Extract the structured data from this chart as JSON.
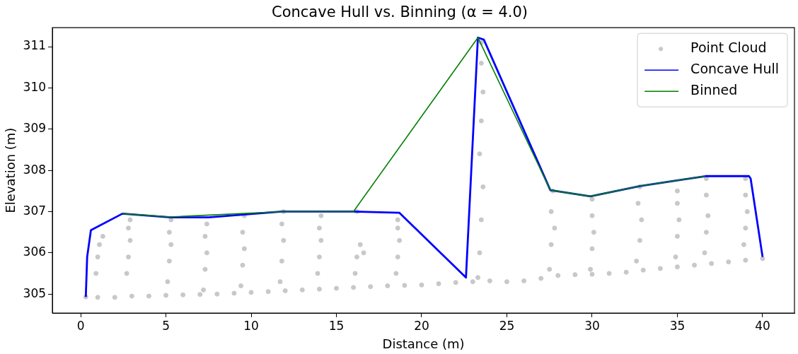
{
  "chart_data": {
    "type": "scatter",
    "title": "Concave Hull vs. Binning (α = 4.0)",
    "xlabel": "Distance (m)",
    "ylabel": "Elevation (m)",
    "xlim": [
      -1.66,
      41.87
    ],
    "ylim": [
      304.54,
      311.46
    ],
    "xticks": [
      0,
      5,
      10,
      15,
      20,
      25,
      30,
      35,
      40
    ],
    "yticks": [
      305,
      306,
      307,
      308,
      309,
      310,
      311
    ],
    "grid": false,
    "legend": "top right",
    "series": [
      {
        "name": "Point Cloud",
        "marker": "circle",
        "color": "#c8c8c8",
        "x": [
          0.3,
          1,
          2,
          3,
          4,
          5,
          6,
          7,
          8,
          9,
          10,
          11,
          12,
          13,
          14,
          15,
          16,
          17,
          18,
          19,
          20,
          21,
          22,
          23,
          24,
          25,
          26,
          27,
          28,
          29,
          30,
          31,
          32,
          33,
          34,
          35,
          36,
          37,
          38,
          39,
          40,
          0.9,
          1.0,
          1.1,
          1.3,
          2.7,
          2.8,
          2.9,
          2.8,
          2.9,
          5.1,
          5.2,
          5.3,
          5.2,
          5.3,
          7.2,
          7.3,
          7.4,
          7.3,
          7.4,
          9.4,
          9.5,
          9.6,
          9.5,
          9.6,
          11.7,
          11.8,
          11.9,
          11.8,
          11.9,
          13.9,
          14.0,
          14.1,
          14.0,
          14.1,
          16.1,
          16.2,
          16.4,
          16.6,
          16.2,
          18.5,
          18.6,
          18.7,
          18.6,
          18.6,
          23.3,
          23.4,
          23.5,
          23.6,
          23.4,
          23.5,
          23.6,
          23.5,
          23.5,
          27.5,
          27.6,
          27.8,
          27.6,
          27.7,
          29.9,
          30.0,
          30.1,
          30.0,
          30.0,
          32.6,
          32.8,
          32.9,
          32.7,
          32.8,
          34.9,
          35.0,
          35.1,
          35.0,
          35.0,
          36.6,
          36.7,
          36.8,
          36.7,
          36.7,
          38.9,
          39.0,
          39.1,
          39.0,
          39.0
        ],
        "values": [
          304.93,
          304.92,
          304.92,
          304.95,
          304.95,
          304.97,
          304.98,
          304.99,
          305.0,
          305.02,
          305.04,
          305.06,
          305.08,
          305.1,
          305.12,
          305.14,
          305.16,
          305.18,
          305.2,
          305.21,
          305.22,
          305.25,
          305.28,
          305.3,
          305.32,
          305.3,
          305.32,
          305.38,
          305.45,
          305.47,
          305.48,
          305.5,
          305.53,
          305.58,
          305.62,
          305.66,
          305.7,
          305.74,
          305.78,
          305.82,
          305.86,
          305.5,
          305.9,
          306.2,
          306.4,
          305.5,
          305.9,
          306.3,
          306.6,
          306.8,
          305.3,
          305.8,
          306.2,
          306.5,
          306.8,
          305.1,
          305.6,
          306.0,
          306.4,
          306.7,
          305.2,
          305.7,
          306.1,
          306.5,
          306.9,
          305.3,
          305.8,
          306.3,
          306.7,
          307.0,
          305.5,
          305.9,
          306.3,
          306.6,
          306.9,
          305.5,
          305.9,
          306.2,
          306.0,
          307.0,
          305.5,
          305.9,
          306.3,
          306.6,
          306.8,
          305.4,
          306.0,
          306.8,
          307.6,
          308.4,
          309.2,
          309.9,
          310.6,
          311.1,
          305.6,
          306.2,
          306.6,
          307.0,
          307.5,
          305.6,
          306.1,
          306.5,
          306.9,
          307.3,
          305.8,
          306.3,
          306.8,
          307.2,
          307.6,
          305.9,
          306.4,
          306.8,
          307.2,
          307.5,
          306.0,
          306.5,
          306.9,
          307.4,
          307.8,
          306.2,
          306.6,
          307.0,
          307.4,
          307.8
        ]
      },
      {
        "name": "Concave Hull",
        "type": "line",
        "color": "#0000ff",
        "x": [
          0.3,
          0.38,
          0.6,
          2.45,
          5.27,
          7.5,
          11.8,
          16.0,
          18.7,
          22.6,
          23.3,
          23.65,
          27.55,
          29.9,
          32.8,
          36.65,
          39.2,
          39.3,
          40.0
        ],
        "values": [
          304.93,
          305.9,
          306.55,
          306.95,
          306.86,
          306.86,
          307.0,
          307.0,
          306.97,
          305.4,
          311.22,
          311.17,
          307.52,
          307.37,
          307.62,
          307.86,
          307.86,
          307.8,
          305.9
        ]
      },
      {
        "name": "Binned",
        "type": "line",
        "color": "#008000",
        "x": [
          2.45,
          5.27,
          11.8,
          16.0,
          23.3,
          27.55,
          29.9,
          32.8,
          36.65
        ],
        "values": [
          306.95,
          306.87,
          307.0,
          307.0,
          311.22,
          307.52,
          307.37,
          307.62,
          307.86
        ]
      }
    ]
  }
}
